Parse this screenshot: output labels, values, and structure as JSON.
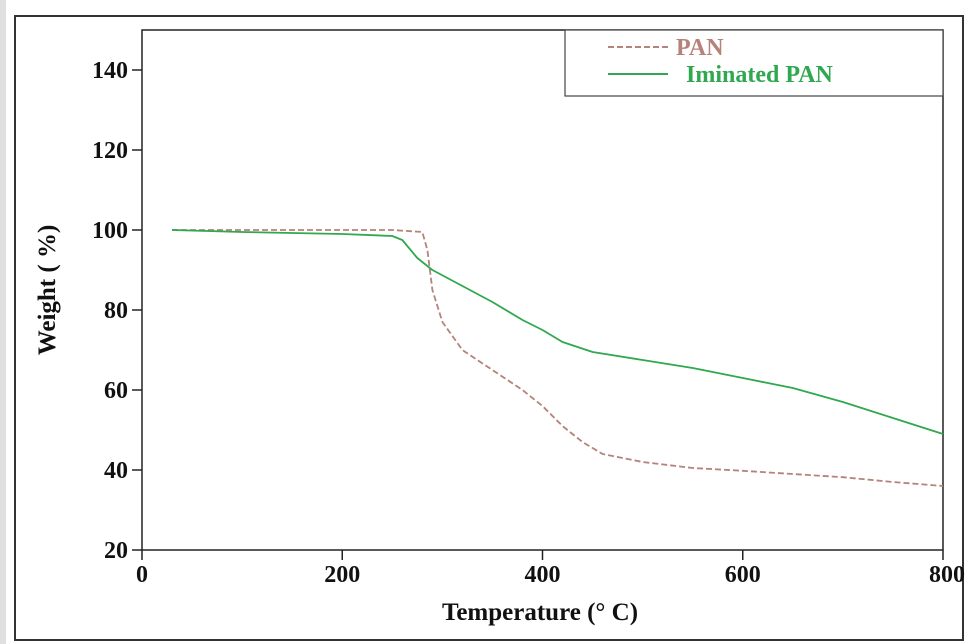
{
  "chart_data": {
    "type": "line",
    "title": "",
    "xlabel": "Temperature (° C)",
    "ylabel": "Weight ( %)",
    "xlim": [
      0,
      800
    ],
    "ylim": [
      20,
      150
    ],
    "xticks": [
      0,
      200,
      400,
      600,
      800
    ],
    "yticks": [
      20,
      40,
      60,
      80,
      100,
      120,
      140
    ],
    "grid": false,
    "legend_position": "top-right",
    "series": [
      {
        "name": "PAN",
        "style": "dashed",
        "color": "#b5837a",
        "points": [
          [
            30,
            100
          ],
          [
            100,
            100
          ],
          [
            200,
            100
          ],
          [
            250,
            100
          ],
          [
            280,
            99.5
          ],
          [
            285,
            95
          ],
          [
            290,
            85
          ],
          [
            300,
            77
          ],
          [
            320,
            70
          ],
          [
            350,
            65
          ],
          [
            380,
            60
          ],
          [
            400,
            56
          ],
          [
            420,
            51
          ],
          [
            440,
            47
          ],
          [
            460,
            44
          ],
          [
            500,
            42
          ],
          [
            550,
            40.5
          ],
          [
            600,
            39.8
          ],
          [
            650,
            39
          ],
          [
            700,
            38.2
          ],
          [
            750,
            37
          ],
          [
            800,
            36
          ]
        ]
      },
      {
        "name": "Iminated PAN",
        "style": "solid",
        "color": "#2fa84f",
        "points": [
          [
            30,
            100
          ],
          [
            100,
            99.5
          ],
          [
            200,
            99
          ],
          [
            250,
            98.5
          ],
          [
            260,
            97.5
          ],
          [
            275,
            93
          ],
          [
            290,
            90
          ],
          [
            320,
            86
          ],
          [
            350,
            82
          ],
          [
            380,
            77.5
          ],
          [
            400,
            75
          ],
          [
            420,
            72
          ],
          [
            450,
            69.5
          ],
          [
            500,
            67.5
          ],
          [
            550,
            65.5
          ],
          [
            600,
            63
          ],
          [
            650,
            60.5
          ],
          [
            700,
            57
          ],
          [
            750,
            53
          ],
          [
            800,
            49
          ]
        ]
      }
    ]
  }
}
